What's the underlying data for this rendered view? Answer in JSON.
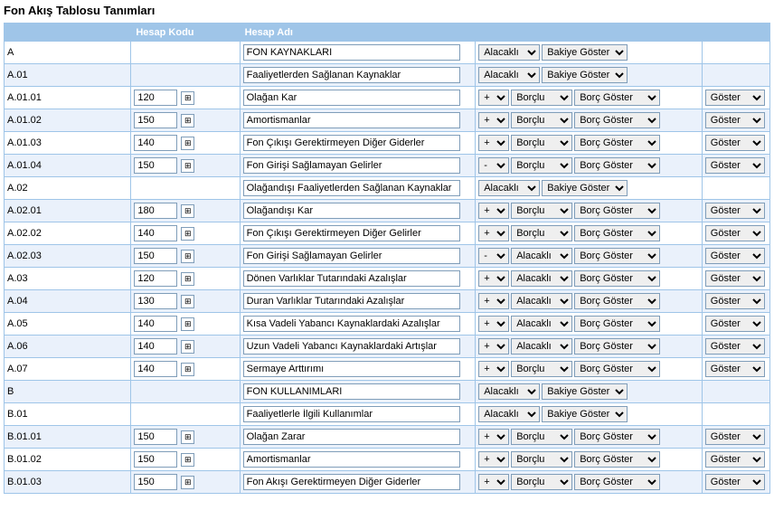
{
  "title": "Fon Akış Tablosu Tanımları",
  "columns": {
    "code": "",
    "acct": "Hesap Kodu",
    "name": "Hesap Adı",
    "ctrl": "",
    "action": ""
  },
  "labels": {
    "plus": "⊞",
    "sign_plus": "+",
    "sign_minus": "-",
    "side_alacakli": "Alacaklı",
    "side_borclu": "Borçlu",
    "bal_bakiye": "Bakiye Göster",
    "bal_borc": "Borç Göster",
    "act_goster": "Göster"
  },
  "rows": [
    {
      "code": "A",
      "acct": "",
      "name": "FON KAYNAKLARI",
      "mode": "header",
      "side": "alacakli",
      "bal": "bakiye",
      "action": false
    },
    {
      "code": "A.01",
      "acct": "",
      "name": "Faaliyetlerden Sağlanan Kaynaklar",
      "mode": "header",
      "side": "alacakli",
      "bal": "bakiye",
      "action": false
    },
    {
      "code": "A.01.01",
      "acct": "120",
      "name": "Olağan Kar",
      "mode": "detail",
      "sign": "plus",
      "side": "borclu",
      "bal": "borc",
      "action": true
    },
    {
      "code": "A.01.02",
      "acct": "150",
      "name": "Amortismanlar",
      "mode": "detail",
      "sign": "plus",
      "side": "borclu",
      "bal": "borc",
      "action": true
    },
    {
      "code": "A.01.03",
      "acct": "140",
      "name": "Fon Çıkışı Gerektirmeyen Diğer Giderler",
      "mode": "detail",
      "sign": "plus",
      "side": "borclu",
      "bal": "borc",
      "action": true
    },
    {
      "code": "A.01.04",
      "acct": "150",
      "name": "Fon Girişi Sağlamayan Gelirler",
      "mode": "detail",
      "sign": "minus",
      "side": "borclu",
      "bal": "borc",
      "action": true
    },
    {
      "code": "A.02",
      "acct": "",
      "name": "Olağandışı Faaliyetlerden Sağlanan Kaynaklar",
      "mode": "header",
      "side": "alacakli",
      "bal": "bakiye",
      "action": false
    },
    {
      "code": "A.02.01",
      "acct": "180",
      "name": "Olağandışı Kar",
      "mode": "detail",
      "sign": "plus",
      "side": "borclu",
      "bal": "borc",
      "action": true
    },
    {
      "code": "A.02.02",
      "acct": "140",
      "name": "Fon Çıkışı Gerektirmeyen Diğer Gelirler",
      "mode": "detail",
      "sign": "plus",
      "side": "borclu",
      "bal": "borc",
      "action": true
    },
    {
      "code": "A.02.03",
      "acct": "150",
      "name": "Fon Girişi Sağlamayan Gelirler",
      "mode": "detail",
      "sign": "minus",
      "side": "alacakli",
      "bal": "borc",
      "action": true
    },
    {
      "code": "A.03",
      "acct": "120",
      "name": "Dönen Varlıklar Tutarındaki Azalışlar",
      "mode": "detail",
      "sign": "plus",
      "side": "alacakli",
      "bal": "borc",
      "action": true
    },
    {
      "code": "A.04",
      "acct": "130",
      "name": "Duran Varlıklar Tutarındaki Azalışlar",
      "mode": "detail",
      "sign": "plus",
      "side": "alacakli",
      "bal": "borc",
      "action": true
    },
    {
      "code": "A.05",
      "acct": "140",
      "name": "Kısa Vadeli Yabancı Kaynaklardaki Azalışlar",
      "mode": "detail",
      "sign": "plus",
      "side": "alacakli",
      "bal": "borc",
      "action": true
    },
    {
      "code": "A.06",
      "acct": "140",
      "name": "Uzun Vadeli Yabancı Kaynaklardaki Artışlar",
      "mode": "detail",
      "sign": "plus",
      "side": "alacakli",
      "bal": "borc",
      "action": true
    },
    {
      "code": "A.07",
      "acct": "140",
      "name": "Sermaye Arttırımı",
      "mode": "detail",
      "sign": "plus",
      "side": "borclu",
      "bal": "borc",
      "action": true
    },
    {
      "code": "B",
      "acct": "",
      "name": "FON KULLANIMLARI",
      "mode": "header",
      "side": "alacakli",
      "bal": "bakiye",
      "action": false
    },
    {
      "code": "B.01",
      "acct": "",
      "name": "Faaliyetlerle İlgili Kullanımlar",
      "mode": "header",
      "side": "alacakli",
      "bal": "bakiye",
      "action": false
    },
    {
      "code": "B.01.01",
      "acct": "150",
      "name": "Olağan Zarar",
      "mode": "detail",
      "sign": "plus",
      "side": "borclu",
      "bal": "borc",
      "action": true
    },
    {
      "code": "B.01.02",
      "acct": "150",
      "name": "Amortismanlar",
      "mode": "detail",
      "sign": "plus",
      "side": "borclu",
      "bal": "borc",
      "action": true
    },
    {
      "code": "B.01.03",
      "acct": "150",
      "name": "Fon Akışı Gerektirmeyen Diğer Giderler",
      "mode": "detail",
      "sign": "plus",
      "side": "borclu",
      "bal": "borc",
      "action": true
    }
  ]
}
